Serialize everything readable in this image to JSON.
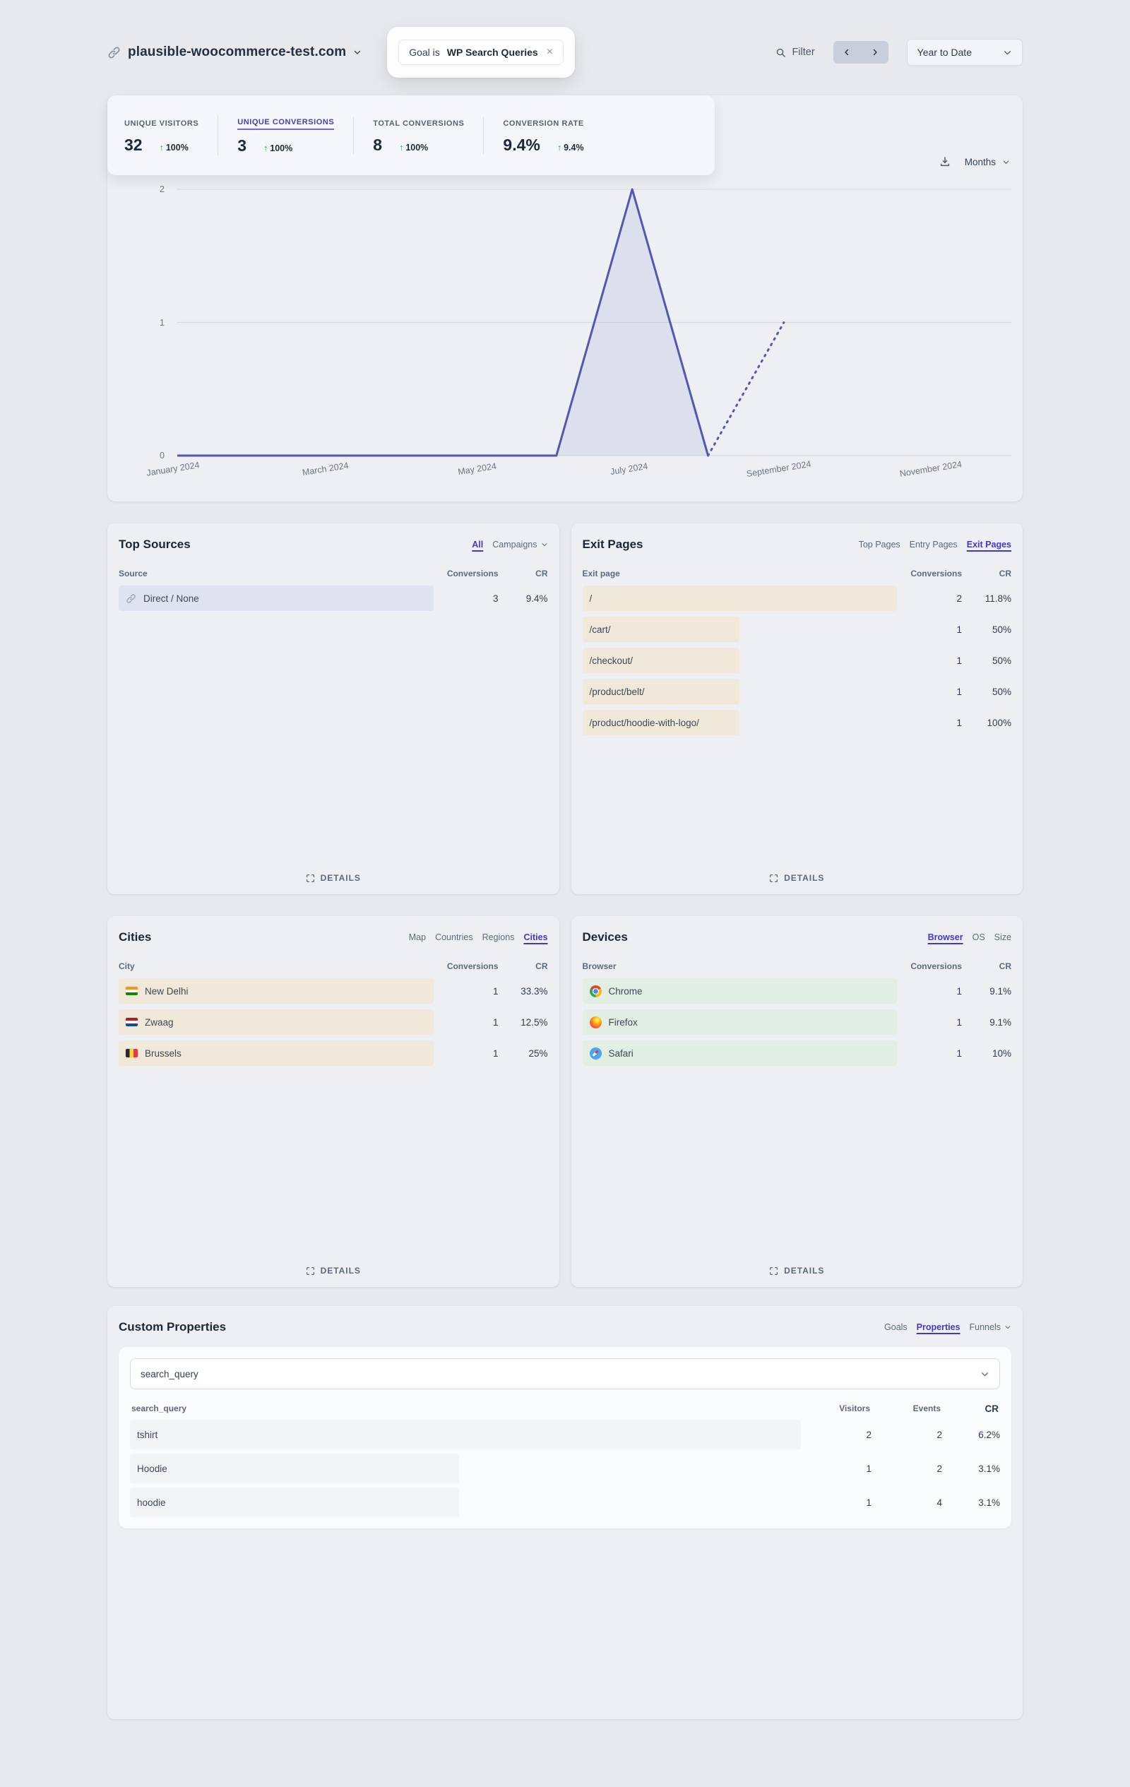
{
  "header": {
    "site_name": "plausible-woocommerce-test.com",
    "site_icon": "link-icon",
    "site_chevron_icon": "chevron-down-icon",
    "goal_filter": {
      "prefix": "Goal is",
      "value": "WP Search Queries",
      "dismiss_icon": "close-icon"
    },
    "filter_label": "Filter",
    "filter_icon": "search-icon",
    "prev_icon": "chevron-left-icon",
    "next_icon": "chevron-right-icon",
    "date_range_label": "Year to Date",
    "date_chevron_icon": "chevron-down-icon"
  },
  "stats": {
    "items": [
      {
        "label": "UNIQUE VISITORS",
        "value": "32",
        "arrow": "↑",
        "change": "100%",
        "active": false
      },
      {
        "label": "UNIQUE CONVERSIONS",
        "value": "3",
        "arrow": "↑",
        "change": "100%",
        "active": true
      },
      {
        "label": "TOTAL CONVERSIONS",
        "value": "8",
        "arrow": "↑",
        "change": "100%",
        "active": false
      },
      {
        "label": "CONVERSION RATE",
        "value": "9.4%",
        "arrow": "↑",
        "change": "9.4%",
        "active": false
      }
    ]
  },
  "chart_toolbar": {
    "download_icon": "download-icon",
    "interval_label": "Months",
    "interval_chevron_icon": "chevron-down-icon"
  },
  "chart_data": {
    "type": "line",
    "interval": "Months",
    "x": [
      "Jan 2024",
      "Feb 2024",
      "Mar 2024",
      "Apr 2024",
      "May 2024",
      "Jun 2024",
      "Jul 2024",
      "Aug 2024",
      "Sep 2024"
    ],
    "values": [
      0,
      0,
      0,
      0,
      0,
      0,
      2,
      0,
      1
    ],
    "dotted_from_index": 7,
    "x_domain_months": 12,
    "x_tick_labels": [
      "January 2024",
      "March 2024",
      "May 2024",
      "July 2024",
      "September 2024",
      "November 2024"
    ],
    "yticks": [
      0,
      1,
      2
    ],
    "ylim": [
      0,
      2
    ],
    "grid": true,
    "legend": false,
    "line_color": "#5157b2",
    "area_opacity": 0.1
  },
  "top_sources": {
    "title": "Top Sources",
    "tabs": [
      "All",
      "Campaigns"
    ],
    "active_tab": "All",
    "columns": [
      "Source",
      "Conversions",
      "CR"
    ],
    "rows": [
      {
        "icon": "link-icon",
        "name": "Direct / None",
        "conversions": "3",
        "cr": "9.4%",
        "bar_pct": 100
      }
    ],
    "details_label": "DETAILS"
  },
  "exit_pages": {
    "title": "Exit Pages",
    "tabs": [
      "Top Pages",
      "Entry Pages",
      "Exit Pages"
    ],
    "active_tab": "Exit Pages",
    "columns": [
      "Exit page",
      "Conversions",
      "CR"
    ],
    "rows": [
      {
        "name": "/",
        "conversions": "2",
        "cr": "11.8%",
        "bar_pct": 100
      },
      {
        "name": "/cart/",
        "conversions": "1",
        "cr": "50%",
        "bar_pct": 50
      },
      {
        "name": "/checkout/",
        "conversions": "1",
        "cr": "50%",
        "bar_pct": 50
      },
      {
        "name": "/product/belt/",
        "conversions": "1",
        "cr": "50%",
        "bar_pct": 50
      },
      {
        "name": "/product/hoodie-with-logo/",
        "conversions": "1",
        "cr": "100%",
        "bar_pct": 50
      }
    ],
    "details_label": "DETAILS"
  },
  "cities": {
    "title": "Cities",
    "tabs": [
      "Map",
      "Countries",
      "Regions",
      "Cities"
    ],
    "active_tab": "Cities",
    "columns": [
      "City",
      "Conversions",
      "CR"
    ],
    "rows": [
      {
        "icon": "flag-india",
        "name": "New Delhi",
        "conversions": "1",
        "cr": "33.3%",
        "bar_pct": 100
      },
      {
        "icon": "flag-netherlands",
        "name": "Zwaag",
        "conversions": "1",
        "cr": "12.5%",
        "bar_pct": 100
      },
      {
        "icon": "flag-belgium",
        "name": "Brussels",
        "conversions": "1",
        "cr": "25%",
        "bar_pct": 100
      }
    ],
    "details_label": "DETAILS"
  },
  "devices": {
    "title": "Devices",
    "tabs": [
      "Browser",
      "OS",
      "Size"
    ],
    "active_tab": "Browser",
    "columns": [
      "Browser",
      "Conversions",
      "CR"
    ],
    "rows": [
      {
        "icon": "chrome-icon",
        "name": "Chrome",
        "conversions": "1",
        "cr": "9.1%",
        "bar_pct": 100
      },
      {
        "icon": "firefox-icon",
        "name": "Firefox",
        "conversions": "1",
        "cr": "9.1%",
        "bar_pct": 100
      },
      {
        "icon": "safari-icon",
        "name": "Safari",
        "conversions": "1",
        "cr": "10%",
        "bar_pct": 100
      }
    ],
    "details_label": "DETAILS"
  },
  "custom_properties": {
    "title": "Custom Properties",
    "tabs": [
      "Goals",
      "Properties",
      "Funnels"
    ],
    "active_tab": "Properties",
    "select_value": "search_query",
    "select_chevron_icon": "chevron-down-icon",
    "columns": [
      "search_query",
      "Visitors",
      "Events",
      "CR"
    ],
    "rows": [
      {
        "name": "tshirt",
        "visitors": "2",
        "events": "2",
        "cr": "6.2%",
        "bar_pct": 100
      },
      {
        "name": "Hoodie",
        "visitors": "1",
        "events": "2",
        "cr": "3.1%",
        "bar_pct": 49
      },
      {
        "name": "hoodie",
        "visitors": "1",
        "events": "4",
        "cr": "3.1%",
        "bar_pct": 49
      }
    ]
  },
  "colors": {
    "accent": "#4338ca",
    "chart_line": "#5157b2",
    "positive_green": "#15a14c",
    "source_bar": "#dfe3f1",
    "page_bar": "#f0e8d9",
    "device_bar": "#e2eee3",
    "property_bar": "#f3f4f6",
    "page_background": "#e7e9ec",
    "panel_background": "#edeff3"
  }
}
